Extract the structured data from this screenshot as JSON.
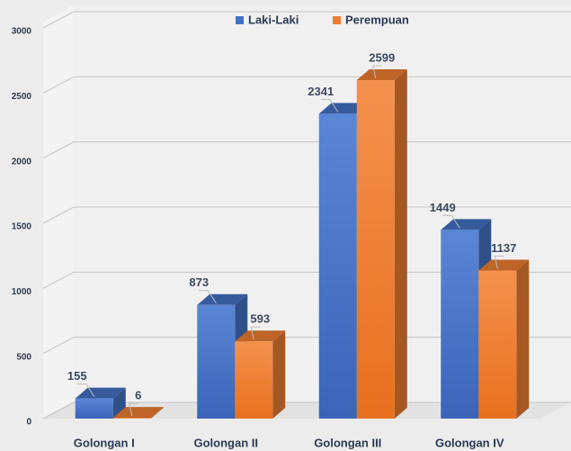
{
  "chart_data": {
    "type": "bar3d",
    "categories": [
      "Golongan I",
      "Golongan II",
      "Golongan III",
      "Golongan IV"
    ],
    "series": [
      {
        "name": "Laki-Laki",
        "color": "#4472c4",
        "values": [
          155,
          873,
          2341,
          1449
        ]
      },
      {
        "name": "Perempuan",
        "color": "#ed7d31",
        "values": [
          6,
          593,
          2599,
          1137
        ]
      }
    ],
    "ylim": [
      0,
      3000
    ],
    "yticks": [
      0,
      500,
      1000,
      1500,
      2000,
      2500,
      3000
    ],
    "grid": true,
    "legend": "top"
  }
}
